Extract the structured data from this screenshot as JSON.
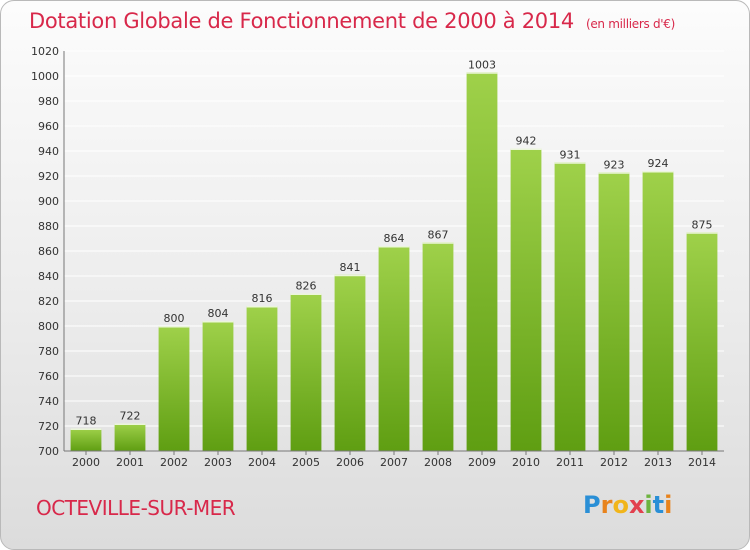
{
  "header": {
    "title": "Dotation Globale de Fonctionnement de 2000 à 2014",
    "unit_note": "(en milliers d'€)"
  },
  "footer": {
    "commune": "OCTEVILLE-SUR-MER",
    "logo": "Proxiti"
  },
  "colors": {
    "accent": "#d8284a",
    "bar_top": "#9fd14a",
    "bar_bottom": "#5f9e12",
    "grid": "#ffffff"
  },
  "chart_data": {
    "type": "bar",
    "title": "Dotation Globale de Fonctionnement de 2000 à 2014",
    "subtitle": "(en milliers d'€)",
    "xlabel": "",
    "ylabel": "",
    "categories": [
      "2000",
      "2001",
      "2002",
      "2003",
      "2004",
      "2005",
      "2006",
      "2007",
      "2008",
      "2009",
      "2010",
      "2011",
      "2012",
      "2013",
      "2014"
    ],
    "values": [
      718,
      722,
      800,
      804,
      816,
      826,
      841,
      864,
      867,
      1003,
      942,
      931,
      923,
      924,
      875
    ],
    "ylim": [
      700,
      1020
    ],
    "yticks": [
      700,
      720,
      740,
      760,
      780,
      800,
      820,
      840,
      860,
      880,
      900,
      920,
      940,
      960,
      980,
      1000,
      1020
    ],
    "grid": true,
    "data_labels": true
  }
}
